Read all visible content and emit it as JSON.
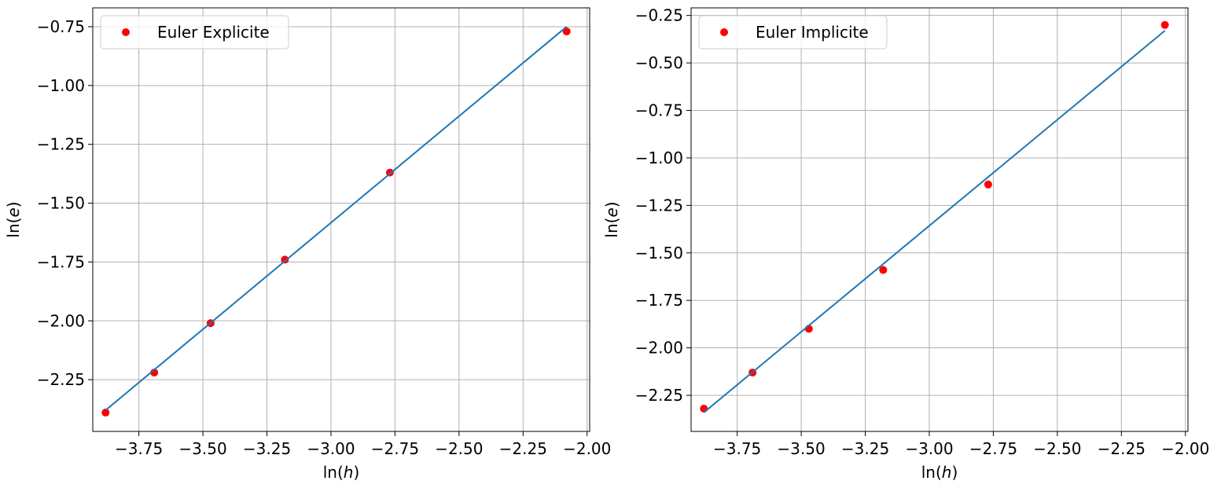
{
  "chart_data": [
    {
      "type": "scatter",
      "xlabel_prefix": "ln(",
      "xlabel_var": "h",
      "xlabel_suffix": ")",
      "ylabel_prefix": "ln(",
      "ylabel_var": "e",
      "ylabel_suffix": ")",
      "xlim": [
        -3.93,
        -1.99
      ],
      "ylim": [
        -2.47,
        -0.67
      ],
      "xticks": [
        -3.75,
        -3.5,
        -3.25,
        -3.0,
        -2.75,
        -2.5,
        -2.25,
        -2.0
      ],
      "xtick_labels": [
        "−3.75",
        "−3.50",
        "−3.25",
        "−3.00",
        "−2.75",
        "−2.50",
        "−2.25",
        "−2.00"
      ],
      "yticks": [
        -2.25,
        -2.0,
        -1.75,
        -1.5,
        -1.25,
        -1.0,
        -0.75
      ],
      "ytick_labels": [
        "−2.25",
        "−2.00",
        "−1.75",
        "−1.50",
        "−1.25",
        "−1.00",
        "−0.75"
      ],
      "grid": true,
      "legend_position": "top-left",
      "series": [
        {
          "name": "Euler Explicite",
          "kind": "points",
          "color": "#ff0000",
          "x": [
            -3.88,
            -3.69,
            -3.47,
            -3.18,
            -2.77,
            -2.08
          ],
          "y": [
            -2.39,
            -2.22,
            -2.01,
            -1.74,
            -1.37,
            -0.77
          ]
        },
        {
          "kind": "line",
          "color": "#1f77b4",
          "x": [
            -3.88,
            -2.08
          ],
          "y": [
            -2.38,
            -0.75
          ]
        }
      ]
    },
    {
      "type": "scatter",
      "xlabel_prefix": "ln(",
      "xlabel_var": "h",
      "xlabel_suffix": ")",
      "ylabel_prefix": "ln(",
      "ylabel_var": "e",
      "ylabel_suffix": ")",
      "xlim": [
        -3.93,
        -1.99
      ],
      "ylim": [
        -2.44,
        -0.21
      ],
      "xticks": [
        -3.75,
        -3.5,
        -3.25,
        -3.0,
        -2.75,
        -2.5,
        -2.25,
        -2.0
      ],
      "xtick_labels": [
        "−3.75",
        "−3.50",
        "−3.25",
        "−3.00",
        "−2.75",
        "−2.50",
        "−2.25",
        "−2.00"
      ],
      "yticks": [
        -2.25,
        -2.0,
        -1.75,
        -1.5,
        -1.25,
        -1.0,
        -0.75,
        -0.5,
        -0.25
      ],
      "ytick_labels": [
        "−2.25",
        "−2.00",
        "−1.75",
        "−1.50",
        "−1.25",
        "−1.00",
        "−0.75",
        "−0.50",
        "−0.25"
      ],
      "grid": true,
      "legend_position": "top-left",
      "series": [
        {
          "name": "Euler Implicite",
          "kind": "points",
          "color": "#ff0000",
          "x": [
            -3.88,
            -3.69,
            -3.47,
            -3.18,
            -2.77,
            -2.08
          ],
          "y": [
            -2.32,
            -2.13,
            -1.9,
            -1.59,
            -1.14,
            -0.3
          ]
        },
        {
          "kind": "line",
          "color": "#1f77b4",
          "x": [
            -3.88,
            -2.08
          ],
          "y": [
            -2.34,
            -0.33
          ]
        }
      ]
    }
  ]
}
